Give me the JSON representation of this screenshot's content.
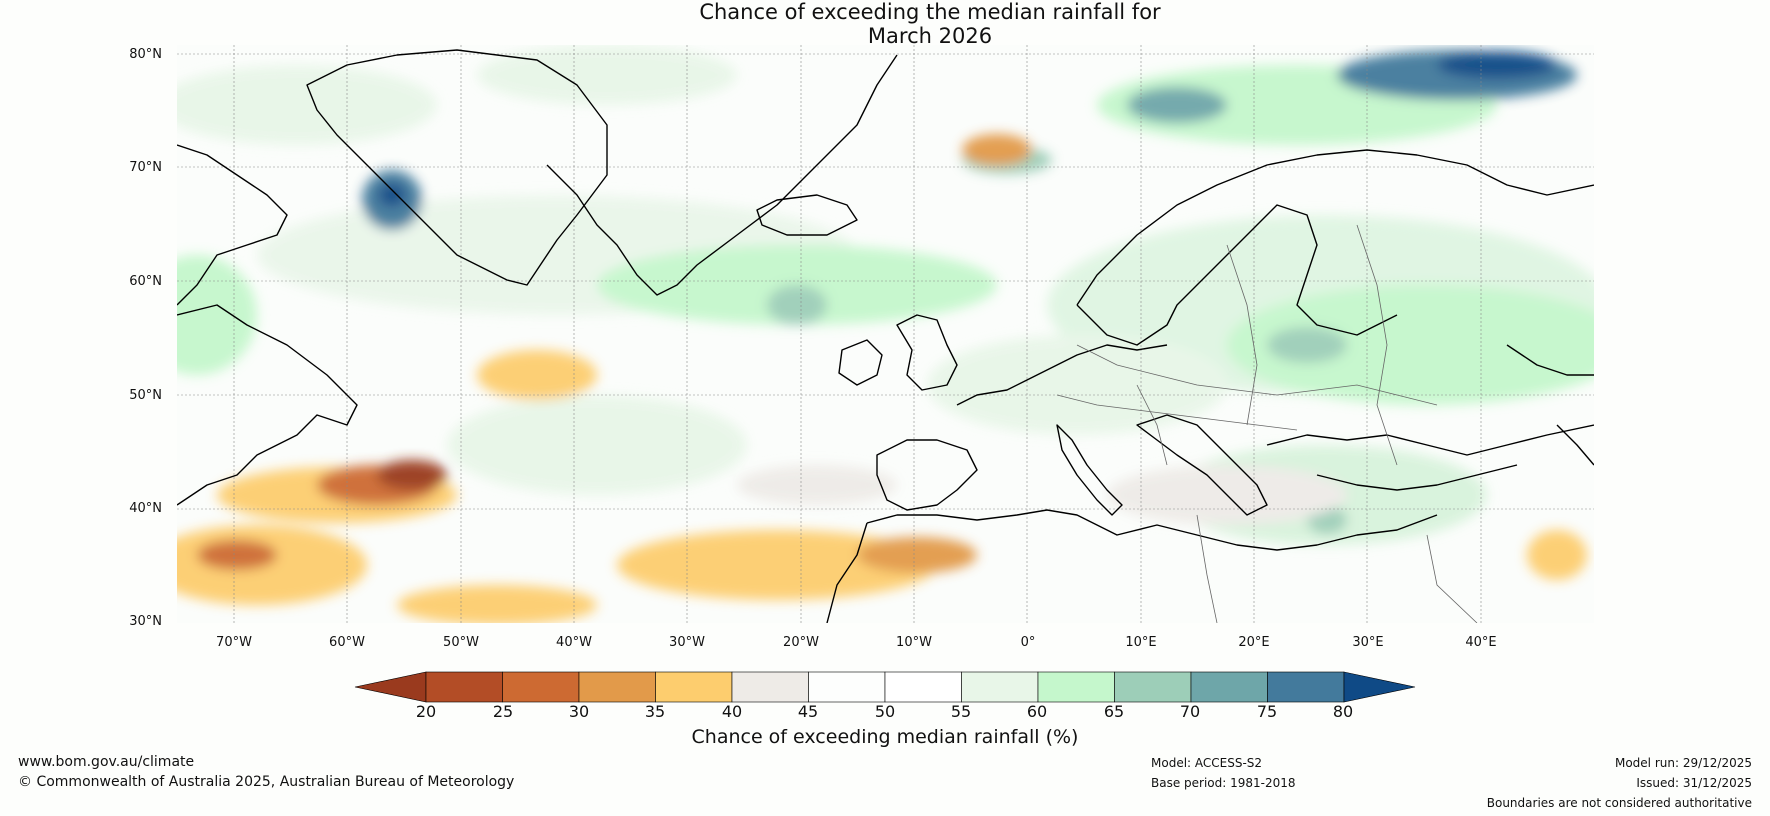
{
  "title": {
    "line1": "Chance of exceeding the median rainfall for",
    "line2": "March 2026"
  },
  "map": {
    "latitude_labels": [
      "80°N",
      "70°N",
      "60°N",
      "50°N",
      "40°N",
      "30°N"
    ],
    "longitude_labels": [
      "70°W",
      "60°W",
      "50°W",
      "40°W",
      "30°W",
      "20°W",
      "10°W",
      "0°",
      "10°E",
      "20°E",
      "30°E",
      "40°E"
    ],
    "extent": {
      "lon_min": -75,
      "lon_max": 50,
      "lat_min": 30,
      "lat_max": 81
    }
  },
  "colorbar": {
    "title": "Chance of exceeding median rainfall (%)",
    "ticks": [
      "20",
      "25",
      "30",
      "35",
      "40",
      "45",
      "50",
      "55",
      "60",
      "65",
      "70",
      "75",
      "80"
    ],
    "colors": [
      "#9a3a1e",
      "#b34d26",
      "#cd6a32",
      "#e29a4a",
      "#fdcd6e",
      "#eeebe7",
      "#fdfefd",
      "#ffffff",
      "#e8f6e8",
      "#c5f7cc",
      "#9dceb8",
      "#6ea6a9",
      "#437a9c",
      "#0f4a86"
    ]
  },
  "footer": {
    "website": "www.bom.gov.au/climate",
    "copyright": "© Commonwealth of Australia 2025, Australian Bureau of Meteorology",
    "model": "Model: ACCESS-S2",
    "base_period": "Base period: 1981-2018",
    "model_run": "Model run: 29/12/2025",
    "issued": "Issued: 31/12/2025",
    "disclaimer": "Boundaries are not considered authoritative"
  }
}
